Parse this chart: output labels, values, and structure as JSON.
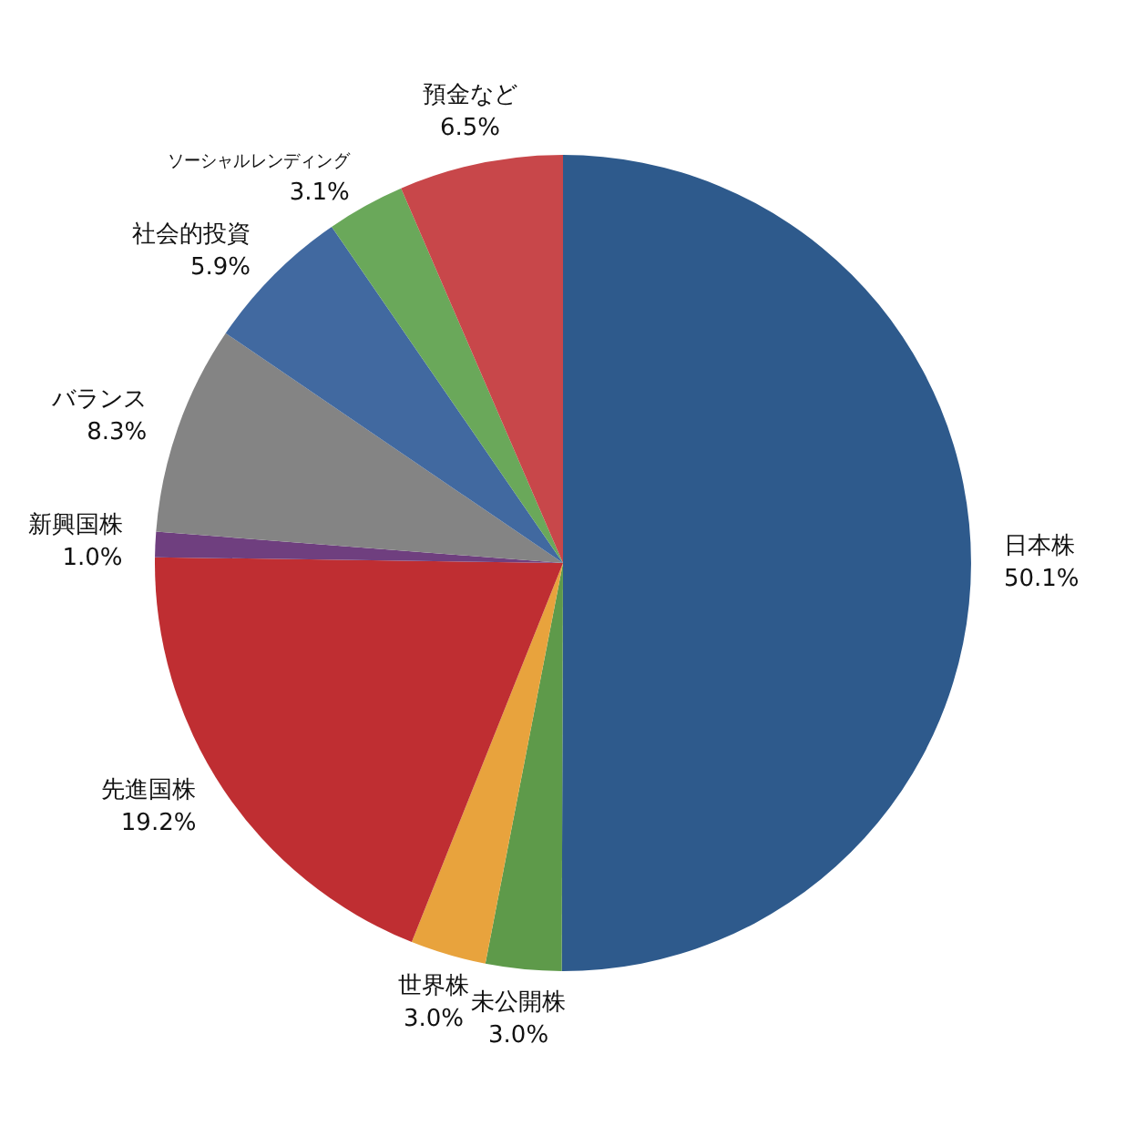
{
  "chart_data": {
    "type": "pie",
    "categories": [
      "日本株",
      "未公開株",
      "世界株",
      "先進国株",
      "新興国株",
      "バランス",
      "社会的投資",
      "ソーシャルレンディング",
      "預金など"
    ],
    "values": [
      50.1,
      3.0,
      3.0,
      19.2,
      1.0,
      8.3,
      5.9,
      3.1,
      6.5
    ],
    "value_labels": [
      "50.1%",
      "3.0%",
      "3.0%",
      "19.2%",
      "1.0%",
      "8.3%",
      "5.9%",
      "3.1%",
      "6.5%"
    ],
    "colors": [
      "#2e5a8c",
      "#5e9a4a",
      "#e8a33d",
      "#bf2e32",
      "#6f3f7f",
      "#848484",
      "#4169a0",
      "#6aa85a",
      "#c8474a"
    ]
  }
}
